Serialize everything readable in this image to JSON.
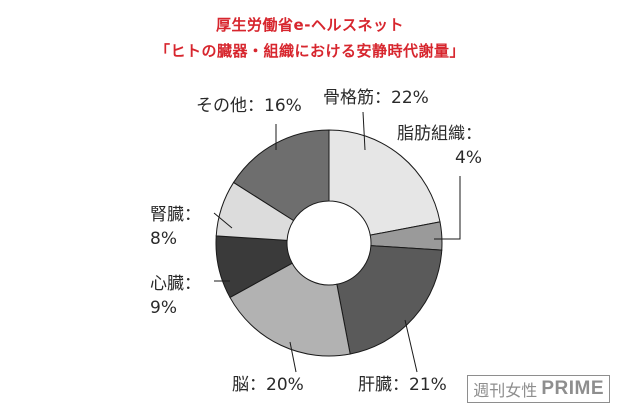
{
  "chart_data": {
    "type": "pie",
    "title": "厚生労働省e-ヘルスネット",
    "subtitle": "「ヒトの臓器・組織における安静時代謝量」",
    "slices": [
      {
        "label": "骨格筋",
        "value": 22,
        "value_text": "22%",
        "color": "#e6e6e6"
      },
      {
        "label": "脂肪組織",
        "value": 4,
        "value_text": "4%",
        "color": "#9a9a9a"
      },
      {
        "label": "肝臓",
        "value": 21,
        "value_text": "21%",
        "color": "#5a5a5a"
      },
      {
        "label": "脳",
        "value": 20,
        "value_text": "20%",
        "color": "#b2b2b2"
      },
      {
        "label": "心臓",
        "value": 9,
        "value_text": "9%",
        "color": "#3a3a3a"
      },
      {
        "label": "腎臓",
        "value": 8,
        "value_text": "8%",
        "color": "#dcdcdc"
      },
      {
        "label": "その他",
        "value": 16,
        "value_text": "16%",
        "color": "#6e6e6e"
      }
    ]
  },
  "label_separator": "：",
  "watermark": {
    "jp": "週刊女性",
    "en": "PRIME"
  }
}
